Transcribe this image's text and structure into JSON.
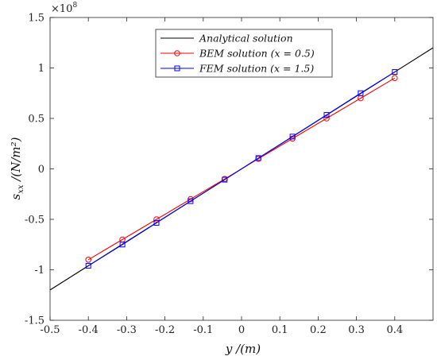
{
  "chart_data": {
    "type": "line",
    "xlabel": "y /(m)",
    "ylabel": "s_xx /(N/m²)",
    "y_exponent": "×10^8",
    "xlim": [
      -0.5,
      0.5
    ],
    "ylim": [
      -1.5,
      1.5
    ],
    "x_ticks": [
      "-0.5",
      "-0.4",
      "-0.3",
      "-0.2",
      "-0.1",
      "0",
      "0.1",
      "0.2",
      "0.3",
      "0.4"
    ],
    "y_ticks": [
      "-1.5",
      "-1",
      "-0.5",
      "0",
      "0.5",
      "1",
      "1.5"
    ],
    "x_tick_values": [
      -0.5,
      -0.4,
      -0.3,
      -0.2,
      -0.1,
      0,
      0.1,
      0.2,
      0.3,
      0.4
    ],
    "y_tick_values": [
      -1.5,
      -1,
      -0.5,
      0,
      0.5,
      1,
      1.5
    ],
    "legend_position": "top-center",
    "grid": false,
    "series": [
      {
        "name": "Analytical solution",
        "color": "#000000",
        "marker": "none",
        "x": [
          -0.5,
          0.5
        ],
        "y": [
          -1.2,
          1.2
        ]
      },
      {
        "name": "BEM solution (x = 0.5)",
        "color": "#ff0000",
        "marker": "circle",
        "x": [
          -0.4,
          -0.311,
          -0.222,
          -0.133,
          -0.044,
          0.044,
          0.133,
          0.222,
          0.311,
          0.4
        ],
        "y": [
          -0.9,
          -0.7,
          -0.5,
          -0.3,
          -0.1,
          0.1,
          0.3,
          0.5,
          0.7,
          0.9
        ]
      },
      {
        "name": "FEM solution (x = 1.5)",
        "color": "#0000ff",
        "marker": "square",
        "x": [
          -0.4,
          -0.311,
          -0.222,
          -0.133,
          -0.044,
          0.044,
          0.133,
          0.222,
          0.311,
          0.4
        ],
        "y": [
          -0.96,
          -0.75,
          -0.535,
          -0.32,
          -0.107,
          0.107,
          0.32,
          0.535,
          0.75,
          0.96
        ]
      }
    ]
  }
}
